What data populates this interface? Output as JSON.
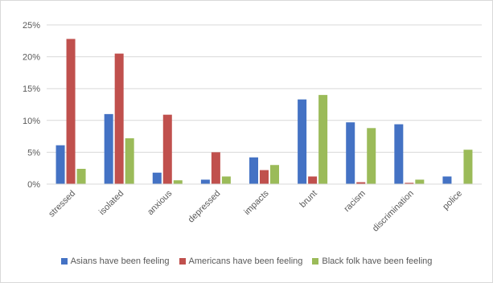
{
  "chart_data": {
    "type": "bar",
    "title": "",
    "xlabel": "",
    "ylabel": "",
    "categories": [
      "stressed",
      "isolated",
      "anxious",
      "depressed",
      "impacts",
      "brunt",
      "racism",
      "discrimination",
      "police"
    ],
    "series": [
      {
        "name": "Asians have been feeling",
        "color": "#4472c4",
        "values": [
          6.1,
          11.0,
          1.8,
          0.7,
          4.2,
          13.3,
          9.7,
          9.4,
          1.2
        ]
      },
      {
        "name": "Americans have been feeling",
        "color": "#c0504d",
        "values": [
          22.8,
          20.5,
          10.9,
          5.0,
          2.2,
          1.2,
          0.3,
          0.2,
          0.0
        ]
      },
      {
        "name": "Black folk have been feeling",
        "color": "#9bbb59",
        "values": [
          2.4,
          7.2,
          0.6,
          1.2,
          3.0,
          14.0,
          8.8,
          0.7,
          5.4
        ]
      }
    ],
    "y_ticks": [
      "0%",
      "5%",
      "10%",
      "15%",
      "20%",
      "25%"
    ],
    "ylim": [
      0,
      25
    ],
    "grid": true,
    "legend_position": "bottom"
  }
}
